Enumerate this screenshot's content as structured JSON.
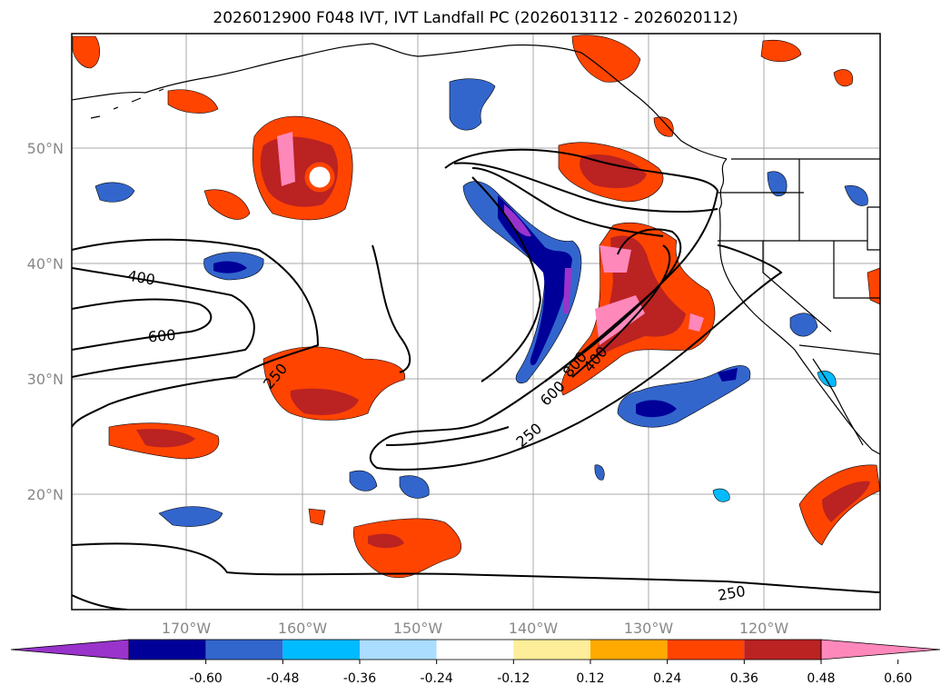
{
  "title": "2026012900 F048 IVT, IVT Landfall PC (2026013112 - 2026020112)",
  "axes": {
    "lon_ticks": [
      "170°W",
      "160°W",
      "150°W",
      "140°W",
      "130°W",
      "120°W"
    ],
    "lat_ticks": [
      "50°N",
      "40°N",
      "30°N",
      "20°N"
    ]
  },
  "contour_labels": {
    "c400_a": "400",
    "c600_a": "600",
    "c250_a": "250",
    "c600_b": "600",
    "c800": "800",
    "c400_b": "400",
    "c250_b": "250",
    "c250_c": "250"
  },
  "colorbar": {
    "colors": [
      "#9933cc",
      "#000099",
      "#3366cc",
      "#00bbff",
      "#aaddff",
      "#ffffff",
      "#ffee99",
      "#ffaa00",
      "#ff4400",
      "#bb2222",
      "#ff88bb"
    ],
    "tick_labels": [
      "-0.60",
      "-0.48",
      "-0.36",
      "-0.24",
      "-0.12",
      "0.12",
      "0.24",
      "0.36",
      "0.48",
      "0.60"
    ]
  },
  "palette": {
    "coast": "#000000",
    "grid": "#aaaaaa",
    "ivt_contour": "#000000"
  }
}
